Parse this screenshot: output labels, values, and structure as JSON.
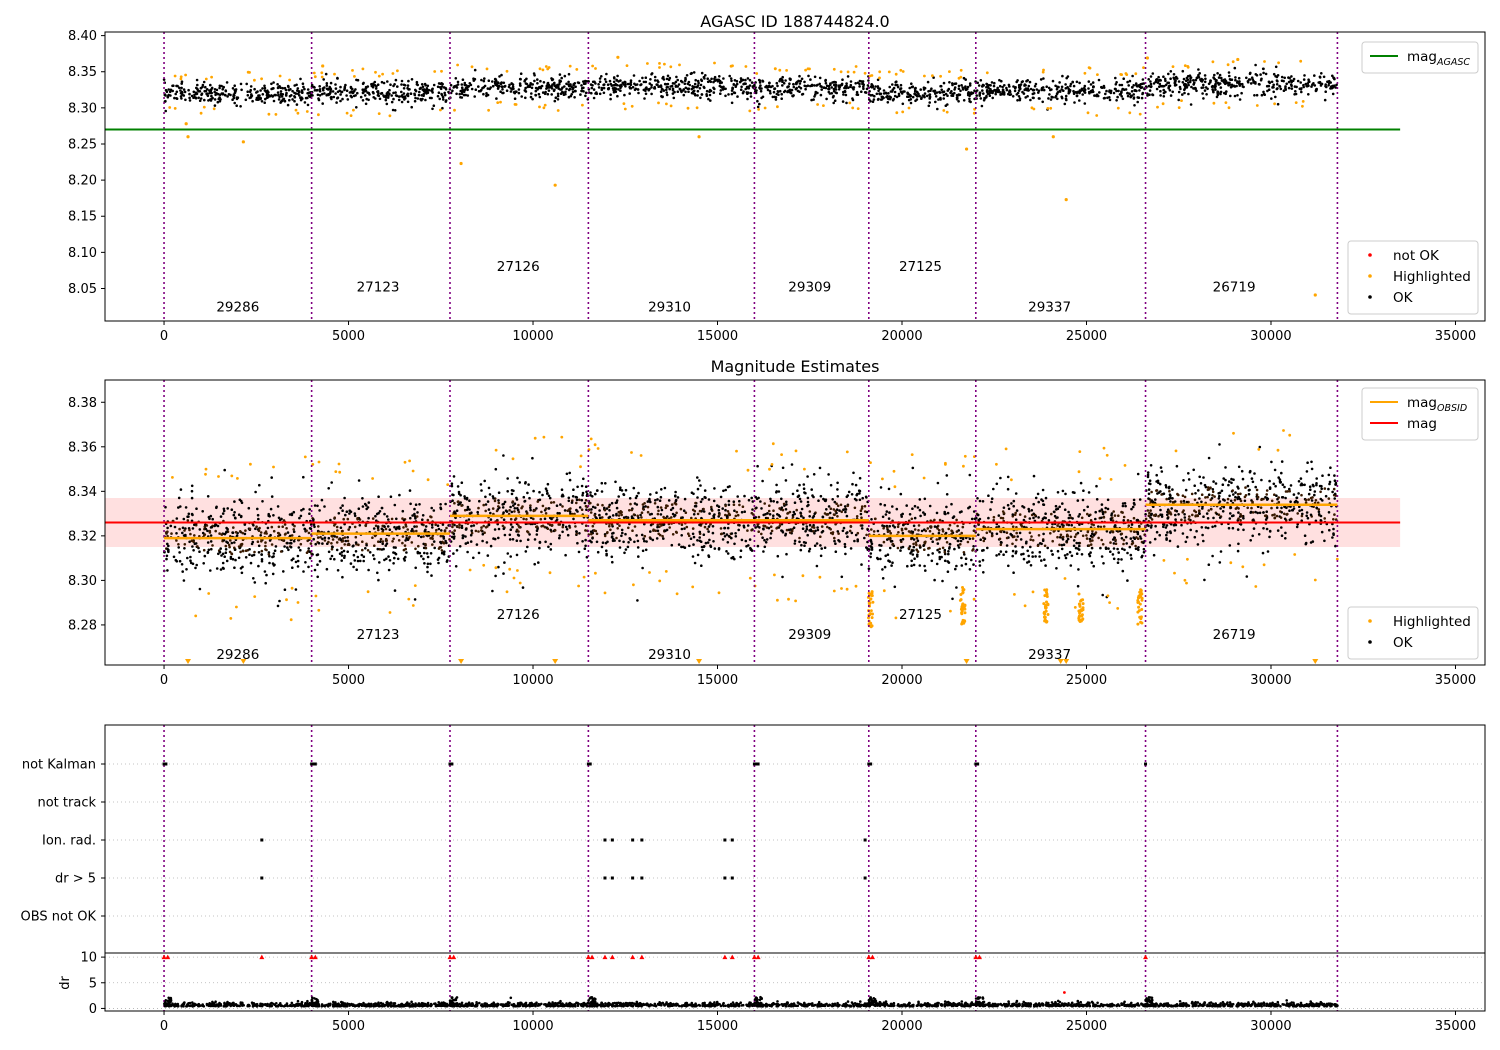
{
  "chart_data": [
    {
      "type": "scatter",
      "title": "AGASC ID 188744824.0",
      "xlim": [
        -1600,
        35800
      ],
      "ylim": [
        8.005,
        8.405
      ],
      "xticks": [
        0,
        5000,
        10000,
        15000,
        20000,
        25000,
        30000,
        35000
      ],
      "yticks": [
        8.05,
        8.1,
        8.15,
        8.2,
        8.25,
        8.3,
        8.35,
        8.4
      ],
      "ytick_labels": [
        "8.05",
        "8.10",
        "8.15",
        "8.20",
        "8.25",
        "8.30",
        "8.35",
        "8.40"
      ],
      "mag_agasc": 8.27,
      "mag_agasc_xrange": [
        -1600,
        33500
      ],
      "obs_boundaries": [
        0,
        4000,
        7750,
        11500,
        16000,
        19100,
        22000,
        26600,
        31800
      ],
      "obs_labels": [
        {
          "text": "29286",
          "x": 2000,
          "y": 8.025
        },
        {
          "text": "27123",
          "x": 5800,
          "y": 8.053
        },
        {
          "text": "27126",
          "x": 9600,
          "y": 8.081
        },
        {
          "text": "29310",
          "x": 13700,
          "y": 8.025
        },
        {
          "text": "29309",
          "x": 17500,
          "y": 8.053
        },
        {
          "text": "27125",
          "x": 20500,
          "y": 8.081
        },
        {
          "text": "29337",
          "x": 24000,
          "y": 8.025
        },
        {
          "text": "26719",
          "x": 29000,
          "y": 8.053
        }
      ],
      "segments": [
        {
          "x0": 0,
          "x1": 4000,
          "mean": 8.32,
          "spread": 0.01
        },
        {
          "x0": 4000,
          "x1": 7750,
          "mean": 8.321,
          "spread": 0.012
        },
        {
          "x0": 7750,
          "x1": 11500,
          "mean": 8.328,
          "spread": 0.011
        },
        {
          "x0": 11500,
          "x1": 16000,
          "mean": 8.329,
          "spread": 0.012
        },
        {
          "x0": 16000,
          "x1": 19100,
          "mean": 8.327,
          "spread": 0.011
        },
        {
          "x0": 19100,
          "x1": 22000,
          "mean": 8.321,
          "spread": 0.011
        },
        {
          "x0": 22000,
          "x1": 26600,
          "mean": 8.323,
          "spread": 0.012
        },
        {
          "x0": 26600,
          "x1": 31800,
          "mean": 8.333,
          "spread": 0.012
        }
      ],
      "highlighted_outliers": [
        {
          "x": 600,
          "y": 8.278
        },
        {
          "x": 650,
          "y": 8.26
        },
        {
          "x": 2150,
          "y": 8.253
        },
        {
          "x": 8050,
          "y": 8.223
        },
        {
          "x": 10600,
          "y": 8.193
        },
        {
          "x": 14500,
          "y": 8.26
        },
        {
          "x": 21750,
          "y": 8.243
        },
        {
          "x": 24100,
          "y": 8.26
        },
        {
          "x": 24450,
          "y": 8.173
        },
        {
          "x": 31200,
          "y": 8.041
        },
        {
          "x": 12300,
          "y": 8.37
        },
        {
          "x": 4300,
          "y": 8.358
        },
        {
          "x": 26650,
          "y": 8.369
        },
        {
          "x": 29100,
          "y": 8.367
        }
      ],
      "legends": [
        {
          "position": "upper-right",
          "entries": [
            {
              "label": "mag",
              "sub": "AGASC",
              "color": "#008000",
              "kind": "line"
            }
          ]
        },
        {
          "position": "lower-right",
          "entries": [
            {
              "label": "not OK",
              "color": "#ff0000",
              "kind": "dot"
            },
            {
              "label": "Highlighted",
              "color": "#ffa500",
              "kind": "dot"
            },
            {
              "label": "OK",
              "color": "#000000",
              "kind": "dot"
            }
          ]
        }
      ]
    },
    {
      "type": "scatter",
      "title": "Magnitude Estimates",
      "xlim": [
        -1600,
        35800
      ],
      "ylim": [
        8.262,
        8.39
      ],
      "xticks": [
        0,
        5000,
        10000,
        15000,
        20000,
        25000,
        30000,
        35000
      ],
      "yticks": [
        8.28,
        8.3,
        8.32,
        8.34,
        8.36,
        8.38
      ],
      "ytick_labels": [
        "8.28",
        "8.30",
        "8.32",
        "8.34",
        "8.36",
        "8.38"
      ],
      "mag": 8.326,
      "mag_band": [
        8.315,
        8.337
      ],
      "mag_xrange": [
        -1600,
        33500
      ],
      "mag_obsid": [
        8.319,
        8.321,
        8.329,
        8.327,
        8.327,
        8.32,
        8.323,
        8.334
      ],
      "obs_labels": [
        {
          "text": "29286",
          "x": 2000,
          "y": 8.267
        },
        {
          "text": "27123",
          "x": 5800,
          "y": 8.276
        },
        {
          "text": "27126",
          "x": 9600,
          "y": 8.285
        },
        {
          "text": "29310",
          "x": 13700,
          "y": 8.267
        },
        {
          "text": "29309",
          "x": 17500,
          "y": 8.276
        },
        {
          "text": "27125",
          "x": 20500,
          "y": 8.285
        },
        {
          "text": "29337",
          "x": 24000,
          "y": 8.267
        },
        {
          "text": "26719",
          "x": 29000,
          "y": 8.276
        }
      ],
      "clipped_markers_x": [
        650,
        2150,
        8050,
        10600,
        14500,
        21750,
        24300,
        24450,
        31200
      ],
      "dip_clusters": [
        {
          "x": 19150,
          "ymin": 8.279,
          "ymax": 8.296
        },
        {
          "x": 21650,
          "ymin": 8.28,
          "ymax": 8.298
        },
        {
          "x": 23900,
          "ymin": 8.281,
          "ymax": 8.296
        },
        {
          "x": 24850,
          "ymin": 8.281,
          "ymax": 8.296
        },
        {
          "x": 26450,
          "ymin": 8.279,
          "ymax": 8.296
        }
      ],
      "legends": [
        {
          "position": "upper-right",
          "entries": [
            {
              "label": "mag",
              "sub": "OBSID",
              "color": "#ffa500",
              "kind": "line"
            },
            {
              "label": "mag",
              "color": "#ff0000",
              "kind": "line"
            }
          ]
        },
        {
          "position": "lower-right",
          "entries": [
            {
              "label": "Highlighted",
              "color": "#ffa500",
              "kind": "dot"
            },
            {
              "label": "OK",
              "color": "#000000",
              "kind": "dot"
            }
          ]
        }
      ]
    },
    {
      "type": "scatter",
      "xlim": [
        -1600,
        35800
      ],
      "xticks": [
        0,
        5000,
        10000,
        15000,
        20000,
        25000,
        30000,
        35000
      ],
      "flag_categories": [
        "not Kalman",
        "not track",
        "Ion. rad.",
        "dr > 5",
        "OBS not OK"
      ],
      "flag_points": {
        "not Kalman": [
          0,
          50,
          4000,
          4050,
          4100,
          7750,
          7800,
          11500,
          11550,
          16000,
          16050,
          16100,
          19100,
          19150,
          22000,
          22050,
          26600
        ],
        "not track": [],
        "Ion. rad.": [
          2650,
          11950,
          12150,
          12700,
          12950,
          15200,
          15400,
          19000
        ],
        "dr > 5": [
          2650,
          11950,
          12150,
          12700,
          12950,
          15200,
          15400,
          19000
        ],
        "OBS not OK": []
      },
      "dr_ylabel": "dr",
      "dr_ylim": [
        -0.5,
        10.8
      ],
      "dr_yticks": [
        0,
        5,
        10
      ],
      "dr_spikes_red": [
        0,
        100,
        4000,
        4100,
        7750,
        7850,
        11500,
        11600,
        16000,
        16100,
        19100,
        19200,
        22000,
        22100,
        26600,
        2650,
        11950,
        12150,
        12700,
        12950,
        15200,
        15400
      ]
    }
  ]
}
